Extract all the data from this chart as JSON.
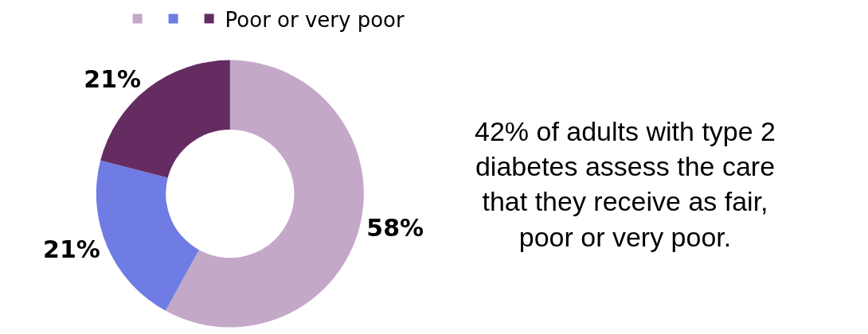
{
  "chart_data": {
    "type": "donut",
    "categories": [
      null,
      null,
      "Poor or very poor"
    ],
    "values": [
      58,
      21,
      21
    ],
    "colors": [
      "#c4a8c8",
      "#6f7ce3",
      "#652c62"
    ],
    "value_labels": [
      "58%",
      "21%",
      "21%"
    ],
    "legend": "top",
    "annotations": [
      "42% of adults with type 2 diabetes assess the care that they receive as fair, poor or very poor."
    ]
  }
}
